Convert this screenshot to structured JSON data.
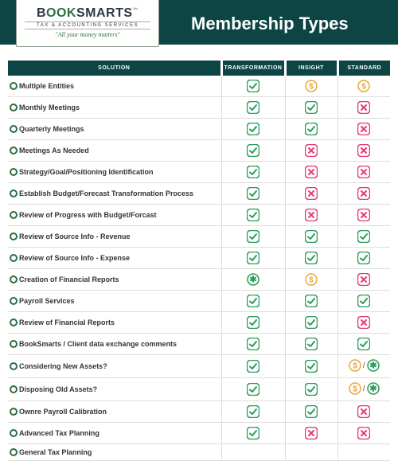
{
  "brand": {
    "name_b": "B",
    "name_ook": "OOK",
    "name_smarts": "SMARTS",
    "tm": "™",
    "subtitle": "TAX & ACCOUNTING SERVICES",
    "tagline": "\"All your money matters\""
  },
  "page_title": "Membership Types",
  "colors": {
    "header_bg": "#0d4544",
    "check_stroke": "#2d9b5b",
    "x_stroke": "#e63976",
    "star_stroke": "#2d9b5b",
    "dollar_stroke": "#e8a93a",
    "row_border": "#dddddd"
  },
  "columns": {
    "solution": "SOLUTION",
    "transformation": "TRANSFORMATION",
    "insight": "INSIGHT",
    "standard": "STANDARD"
  },
  "rows": [
    {
      "label": "Multiple Entities",
      "t": "check",
      "i": "dollar",
      "s": "dollar"
    },
    {
      "label": "Monthly Meetings",
      "t": "check",
      "i": "check",
      "s": "x"
    },
    {
      "label": "Quarterly Meetings",
      "t": "check",
      "i": "check",
      "s": "x"
    },
    {
      "label": "Meetings As Needed",
      "t": "check",
      "i": "x",
      "s": "x"
    },
    {
      "label": "Strategy/Goal/Positioning Identification",
      "t": "check",
      "i": "x",
      "s": "x"
    },
    {
      "label": "Establish Budget/Forecast Transformation Process",
      "t": "check",
      "i": "x",
      "s": "x"
    },
    {
      "label": "Review of Progress with Budget/Forcast",
      "t": "check",
      "i": "x",
      "s": "x"
    },
    {
      "label": "Review of Source Info - Revenue",
      "t": "check",
      "i": "check",
      "s": "check"
    },
    {
      "label": "Review of Source Info - Expense",
      "t": "check",
      "i": "check",
      "s": "check"
    },
    {
      "label": "Creation of Financial Reports",
      "t": "star",
      "i": "dollar",
      "s": "x"
    },
    {
      "label": "Payroll Services",
      "t": "check",
      "i": "check",
      "s": "check"
    },
    {
      "label": "Review of Financial Reports",
      "t": "check",
      "i": "check",
      "s": "x"
    },
    {
      "label": "BookSmarts / Client data exchange comments",
      "t": "check",
      "i": "check",
      "s": "check"
    },
    {
      "label": "Considering New Assets?",
      "t": "check",
      "i": "check",
      "s": "combo"
    },
    {
      "label": "Disposing Old Assets?",
      "t": "check",
      "i": "check",
      "s": "combo"
    },
    {
      "label": "Ownre Payroll Calibration",
      "t": "check",
      "i": "check",
      "s": "x"
    },
    {
      "label": "Advanced Tax Planning",
      "t": "check",
      "i": "x",
      "s": "x"
    },
    {
      "label": "General Tax Planning",
      "t": "",
      "i": "",
      "s": ""
    }
  ]
}
